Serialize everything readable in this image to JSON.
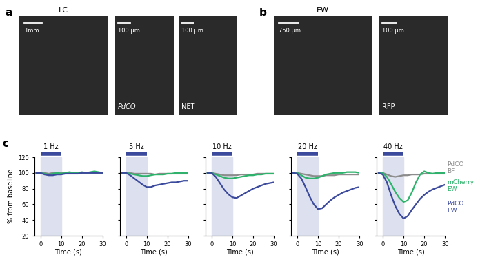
{
  "images": {
    "panel_labels": [
      "a",
      "b",
      "c"
    ],
    "groups": [
      {
        "panel": "a",
        "callout": "LC",
        "images": [
          {
            "scale_bar": "1mm"
          },
          {
            "scale_bar": "100 µm",
            "label": "PdCO"
          },
          {
            "scale_bar": "100 µm",
            "label": "NET"
          }
        ]
      },
      {
        "panel": "b",
        "callout": "EW",
        "images": [
          {
            "scale_bar": "750 µm"
          },
          {
            "scale_bar": "100 µm",
            "label": "RFP"
          }
        ]
      }
    ]
  },
  "chart_data": [
    {
      "type": "line",
      "title": "1 Hz",
      "stim": [
        0,
        10
      ],
      "xlabel": "Time (s)",
      "ylabel": "% from baseline",
      "x": [
        -2,
        0,
        2,
        4,
        6,
        8,
        10,
        12,
        14,
        16,
        18,
        20,
        22,
        24,
        26,
        28,
        30
      ],
      "xlim": [
        -3,
        30
      ],
      "xticks": [
        0,
        10,
        20,
        30
      ],
      "ylim": [
        20,
        120
      ],
      "yticks": [
        20,
        40,
        60,
        80,
        100,
        120
      ],
      "series": [
        {
          "name": "PdCO\nBF",
          "color": "#8c8c8c",
          "values": [
            100,
            100,
            100,
            99,
            100,
            100,
            100,
            100,
            100,
            100,
            99,
            100,
            100,
            100,
            100,
            100,
            100
          ]
        },
        {
          "name": "mCherry\nEW",
          "color": "#2db36b",
          "values": [
            100,
            100,
            99,
            98,
            99,
            100,
            99,
            100,
            101,
            100,
            100,
            101,
            100,
            101,
            102,
            101,
            100
          ]
        },
        {
          "name": "PdCO\nEW",
          "color": "#3b4a9c",
          "values": [
            100,
            100,
            98,
            97,
            97,
            98,
            98,
            99,
            99,
            99,
            99,
            100,
            100,
            100,
            100,
            100,
            100
          ]
        }
      ]
    },
    {
      "type": "line",
      "title": "5 Hz",
      "stim": [
        0,
        10
      ],
      "xlabel": "Time (s)",
      "tick_labels": "x",
      "x": [
        -2,
        0,
        2,
        4,
        6,
        8,
        10,
        12,
        14,
        16,
        18,
        20,
        22,
        24,
        26,
        28,
        30
      ],
      "xlim": [
        -3,
        30
      ],
      "xticks": [
        0,
        10,
        20,
        30
      ],
      "ylim": [
        20,
        120
      ],
      "yticks": [
        20,
        40,
        60,
        80,
        100,
        120
      ],
      "series": [
        {
          "name": "PdCO\nBF",
          "color": "#8c8c8c",
          "values": [
            100,
            100,
            100,
            99,
            99,
            99,
            99,
            99,
            98,
            99,
            99,
            99,
            99,
            99,
            99,
            99,
            99
          ]
        },
        {
          "name": "mCherry\nEW",
          "color": "#2db36b",
          "values": [
            100,
            100,
            99,
            98,
            97,
            96,
            96,
            97,
            98,
            98,
            98,
            99,
            99,
            100,
            100,
            100,
            100
          ]
        },
        {
          "name": "PdCO\nEW",
          "color": "#3b4a9c",
          "values": [
            100,
            100,
            97,
            93,
            89,
            85,
            82,
            82,
            84,
            85,
            86,
            87,
            88,
            88,
            89,
            90,
            90
          ]
        }
      ]
    },
    {
      "type": "line",
      "title": "10 Hz",
      "stim": [
        0,
        10
      ],
      "xlabel": "Time (s)",
      "tick_labels": "x",
      "x": [
        -2,
        0,
        2,
        4,
        6,
        8,
        10,
        12,
        14,
        16,
        18,
        20,
        22,
        24,
        26,
        28,
        30
      ],
      "xlim": [
        -3,
        30
      ],
      "xticks": [
        0,
        10,
        20,
        30
      ],
      "ylim": [
        20,
        120
      ],
      "yticks": [
        20,
        40,
        60,
        80,
        100,
        120
      ],
      "series": [
        {
          "name": "PdCO\nBF",
          "color": "#8c8c8c",
          "values": [
            100,
            100,
            99,
            98,
            97,
            97,
            97,
            97,
            98,
            98,
            98,
            98,
            99,
            99,
            99,
            99,
            99
          ]
        },
        {
          "name": "mCherry\nEW",
          "color": "#2db36b",
          "values": [
            100,
            100,
            98,
            96,
            94,
            93,
            93,
            94,
            95,
            96,
            97,
            97,
            98,
            98,
            99,
            99,
            99
          ]
        },
        {
          "name": "PdCO\nEW",
          "color": "#3b4a9c",
          "values": [
            100,
            100,
            95,
            87,
            79,
            73,
            69,
            68,
            71,
            74,
            77,
            80,
            82,
            84,
            86,
            87,
            88
          ]
        }
      ]
    },
    {
      "type": "line",
      "title": "20 Hz",
      "stim": [
        0,
        10
      ],
      "xlabel": "Time (s)",
      "tick_labels": "x",
      "x": [
        -2,
        0,
        2,
        4,
        6,
        8,
        10,
        12,
        14,
        16,
        18,
        20,
        22,
        24,
        26,
        28,
        30
      ],
      "xlim": [
        -3,
        30
      ],
      "xticks": [
        0,
        10,
        20,
        30
      ],
      "ylim": [
        20,
        120
      ],
      "yticks": [
        20,
        40,
        60,
        80,
        100,
        120
      ],
      "series": [
        {
          "name": "PdCO\nBF",
          "color": "#8c8c8c",
          "values": [
            100,
            100,
            99,
            98,
            97,
            96,
            96,
            96,
            97,
            97,
            97,
            98,
            98,
            98,
            98,
            98,
            98
          ]
        },
        {
          "name": "mCherry\nEW",
          "color": "#2db36b",
          "values": [
            100,
            100,
            97,
            94,
            93,
            93,
            94,
            96,
            98,
            99,
            100,
            100,
            100,
            101,
            101,
            101,
            100
          ]
        },
        {
          "name": "PdCO\nEW",
          "color": "#3b4a9c",
          "values": [
            100,
            99,
            93,
            82,
            70,
            60,
            54,
            55,
            60,
            65,
            69,
            72,
            75,
            77,
            79,
            81,
            82
          ]
        }
      ]
    },
    {
      "type": "line",
      "title": "40 Hz",
      "stim": [
        0,
        10
      ],
      "xlabel": "Time (s)",
      "tick_labels": "x",
      "legend": "right",
      "x": [
        -2,
        0,
        2,
        4,
        6,
        8,
        10,
        12,
        14,
        16,
        18,
        20,
        22,
        24,
        26,
        28,
        30
      ],
      "xlim": [
        -3,
        30
      ],
      "xticks": [
        0,
        10,
        20,
        30
      ],
      "ylim": [
        20,
        120
      ],
      "yticks": [
        20,
        40,
        60,
        80,
        100,
        120
      ],
      "series": [
        {
          "name": "PdCO\nBF",
          "color": "#8c8c8c",
          "values": [
            100,
            100,
            98,
            96,
            95,
            96,
            97,
            97,
            98,
            98,
            98,
            99,
            99,
            99,
            99,
            99,
            99
          ]
        },
        {
          "name": "mCherry\nEW",
          "color": "#2db36b",
          "values": [
            100,
            100,
            95,
            86,
            76,
            68,
            63,
            65,
            75,
            88,
            98,
            102,
            100,
            99,
            100,
            100,
            100
          ]
        },
        {
          "name": "PdCO\nEW",
          "color": "#3b4a9c",
          "values": [
            100,
            98,
            88,
            72,
            58,
            48,
            42,
            45,
            53,
            60,
            67,
            72,
            76,
            79,
            81,
            83,
            85
          ]
        }
      ]
    }
  ]
}
